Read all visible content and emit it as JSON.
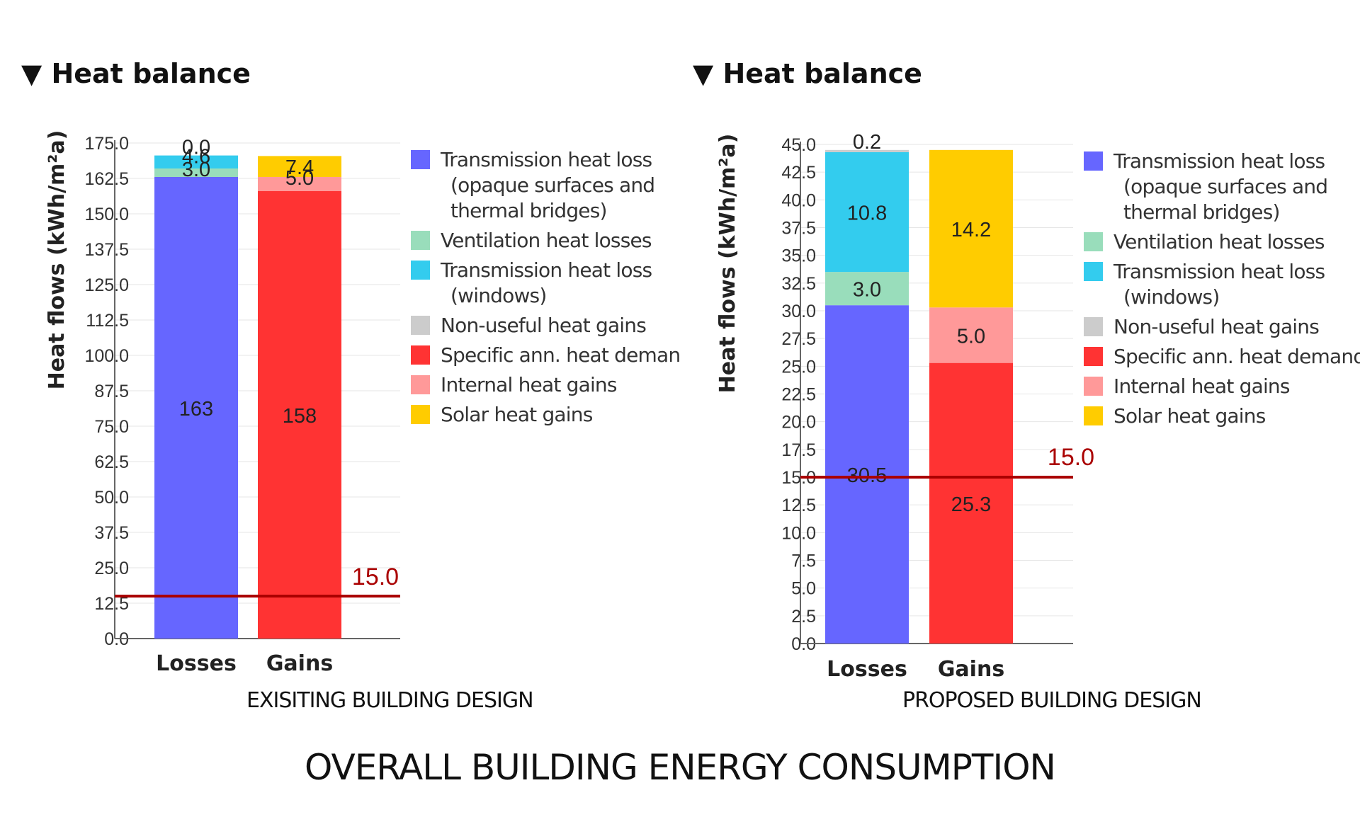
{
  "main_title": "OVERALL BUILDING ENERGY CONSUMPTION",
  "legend": [
    {
      "lines": [
        "Transmission heat loss",
        "(opaque surfaces and",
        "thermal bridges)"
      ],
      "color": "#6666ff"
    },
    {
      "lines": [
        "Ventilation heat losses"
      ],
      "color": "#99ddbb"
    },
    {
      "lines": [
        "Transmission heat loss",
        "(windows)"
      ],
      "color": "#33ccee"
    },
    {
      "lines": [
        "Non-useful heat gains"
      ],
      "color": "#cccccc"
    },
    {
      "lines": [
        "Specific ann. heat demand"
      ],
      "color": "#ff3333"
    },
    {
      "lines": [
        "Internal heat gains"
      ],
      "color": "#ff9999"
    },
    {
      "lines": [
        "Solar heat gains"
      ],
      "color": "#ffcc00"
    }
  ],
  "chart_data": [
    {
      "type": "bar",
      "stacked": true,
      "heading": "▼ Heat balance",
      "caption": "EXISITING BUILDING DESIGN",
      "ylabel": "Heat flows (kWh/m²a)",
      "categories": [
        "Losses",
        "Gains"
      ],
      "ylim": [
        0,
        175
      ],
      "yticks": [
        "0.0",
        "12.5",
        "25.0",
        "37.5",
        "50.0",
        "62.5",
        "75.0",
        "87.5",
        "100.0",
        "112.5",
        "125.0",
        "137.5",
        "150.0",
        "162.5",
        "175.0"
      ],
      "reference_line": {
        "value": 15.0,
        "label": "15.0",
        "color": "#aa0000"
      },
      "bars": [
        {
          "category": "Losses",
          "segments": [
            {
              "series": "Transmission heat loss (opaque surfaces and thermal bridges)",
              "value": 163,
              "label": "163",
              "color": "#6666ff"
            },
            {
              "series": "Ventilation heat losses",
              "value": 3.0,
              "label": "3.0",
              "color": "#99ddbb"
            },
            {
              "series": "Transmission heat loss (windows)",
              "value": 4.6,
              "label": "4.6",
              "color": "#33ccee"
            },
            {
              "series": "Non-useful heat gains",
              "value": 0.0,
              "label": "0.0",
              "color": "#cccccc"
            }
          ]
        },
        {
          "category": "Gains",
          "segments": [
            {
              "series": "Specific ann. heat demand",
              "value": 158,
              "label": "158",
              "color": "#ff3333"
            },
            {
              "series": "Internal heat gains",
              "value": 5.0,
              "label": "5.0",
              "color": "#ff9999"
            },
            {
              "series": "Solar heat gains",
              "value": 7.4,
              "label": "7.4",
              "color": "#ffcc00"
            }
          ]
        }
      ]
    },
    {
      "type": "bar",
      "stacked": true,
      "heading": "▼ Heat balance",
      "caption": "PROPOSED BUILDING DESIGN",
      "ylabel": "Heat flows (kWh/m²a)",
      "categories": [
        "Losses",
        "Gains"
      ],
      "ylim": [
        0,
        45
      ],
      "yticks": [
        "0.0",
        "2.5",
        "5.0",
        "7.5",
        "10.0",
        "12.5",
        "15.0",
        "17.5",
        "20.0",
        "22.5",
        "25.0",
        "27.5",
        "30.0",
        "32.5",
        "35.0",
        "37.5",
        "40.0",
        "42.5",
        "45.0"
      ],
      "reference_line": {
        "value": 15.0,
        "label": "15.0",
        "color": "#aa0000"
      },
      "bars": [
        {
          "category": "Losses",
          "segments": [
            {
              "series": "Transmission heat loss (opaque surfaces and thermal bridges)",
              "value": 30.5,
              "label": "30.5",
              "color": "#6666ff"
            },
            {
              "series": "Ventilation heat losses",
              "value": 3.0,
              "label": "3.0",
              "color": "#99ddbb"
            },
            {
              "series": "Transmission heat loss (windows)",
              "value": 10.8,
              "label": "10.8",
              "color": "#33ccee"
            },
            {
              "series": "Non-useful heat gains",
              "value": 0.2,
              "label": "0.2",
              "color": "#cccccc"
            }
          ]
        },
        {
          "category": "Gains",
          "segments": [
            {
              "series": "Specific ann. heat demand",
              "value": 25.3,
              "label": "25.3",
              "color": "#ff3333"
            },
            {
              "series": "Internal heat gains",
              "value": 5.0,
              "label": "5.0",
              "color": "#ff9999"
            },
            {
              "series": "Solar heat gains",
              "value": 14.2,
              "label": "14.2",
              "color": "#ffcc00"
            }
          ]
        }
      ]
    }
  ]
}
